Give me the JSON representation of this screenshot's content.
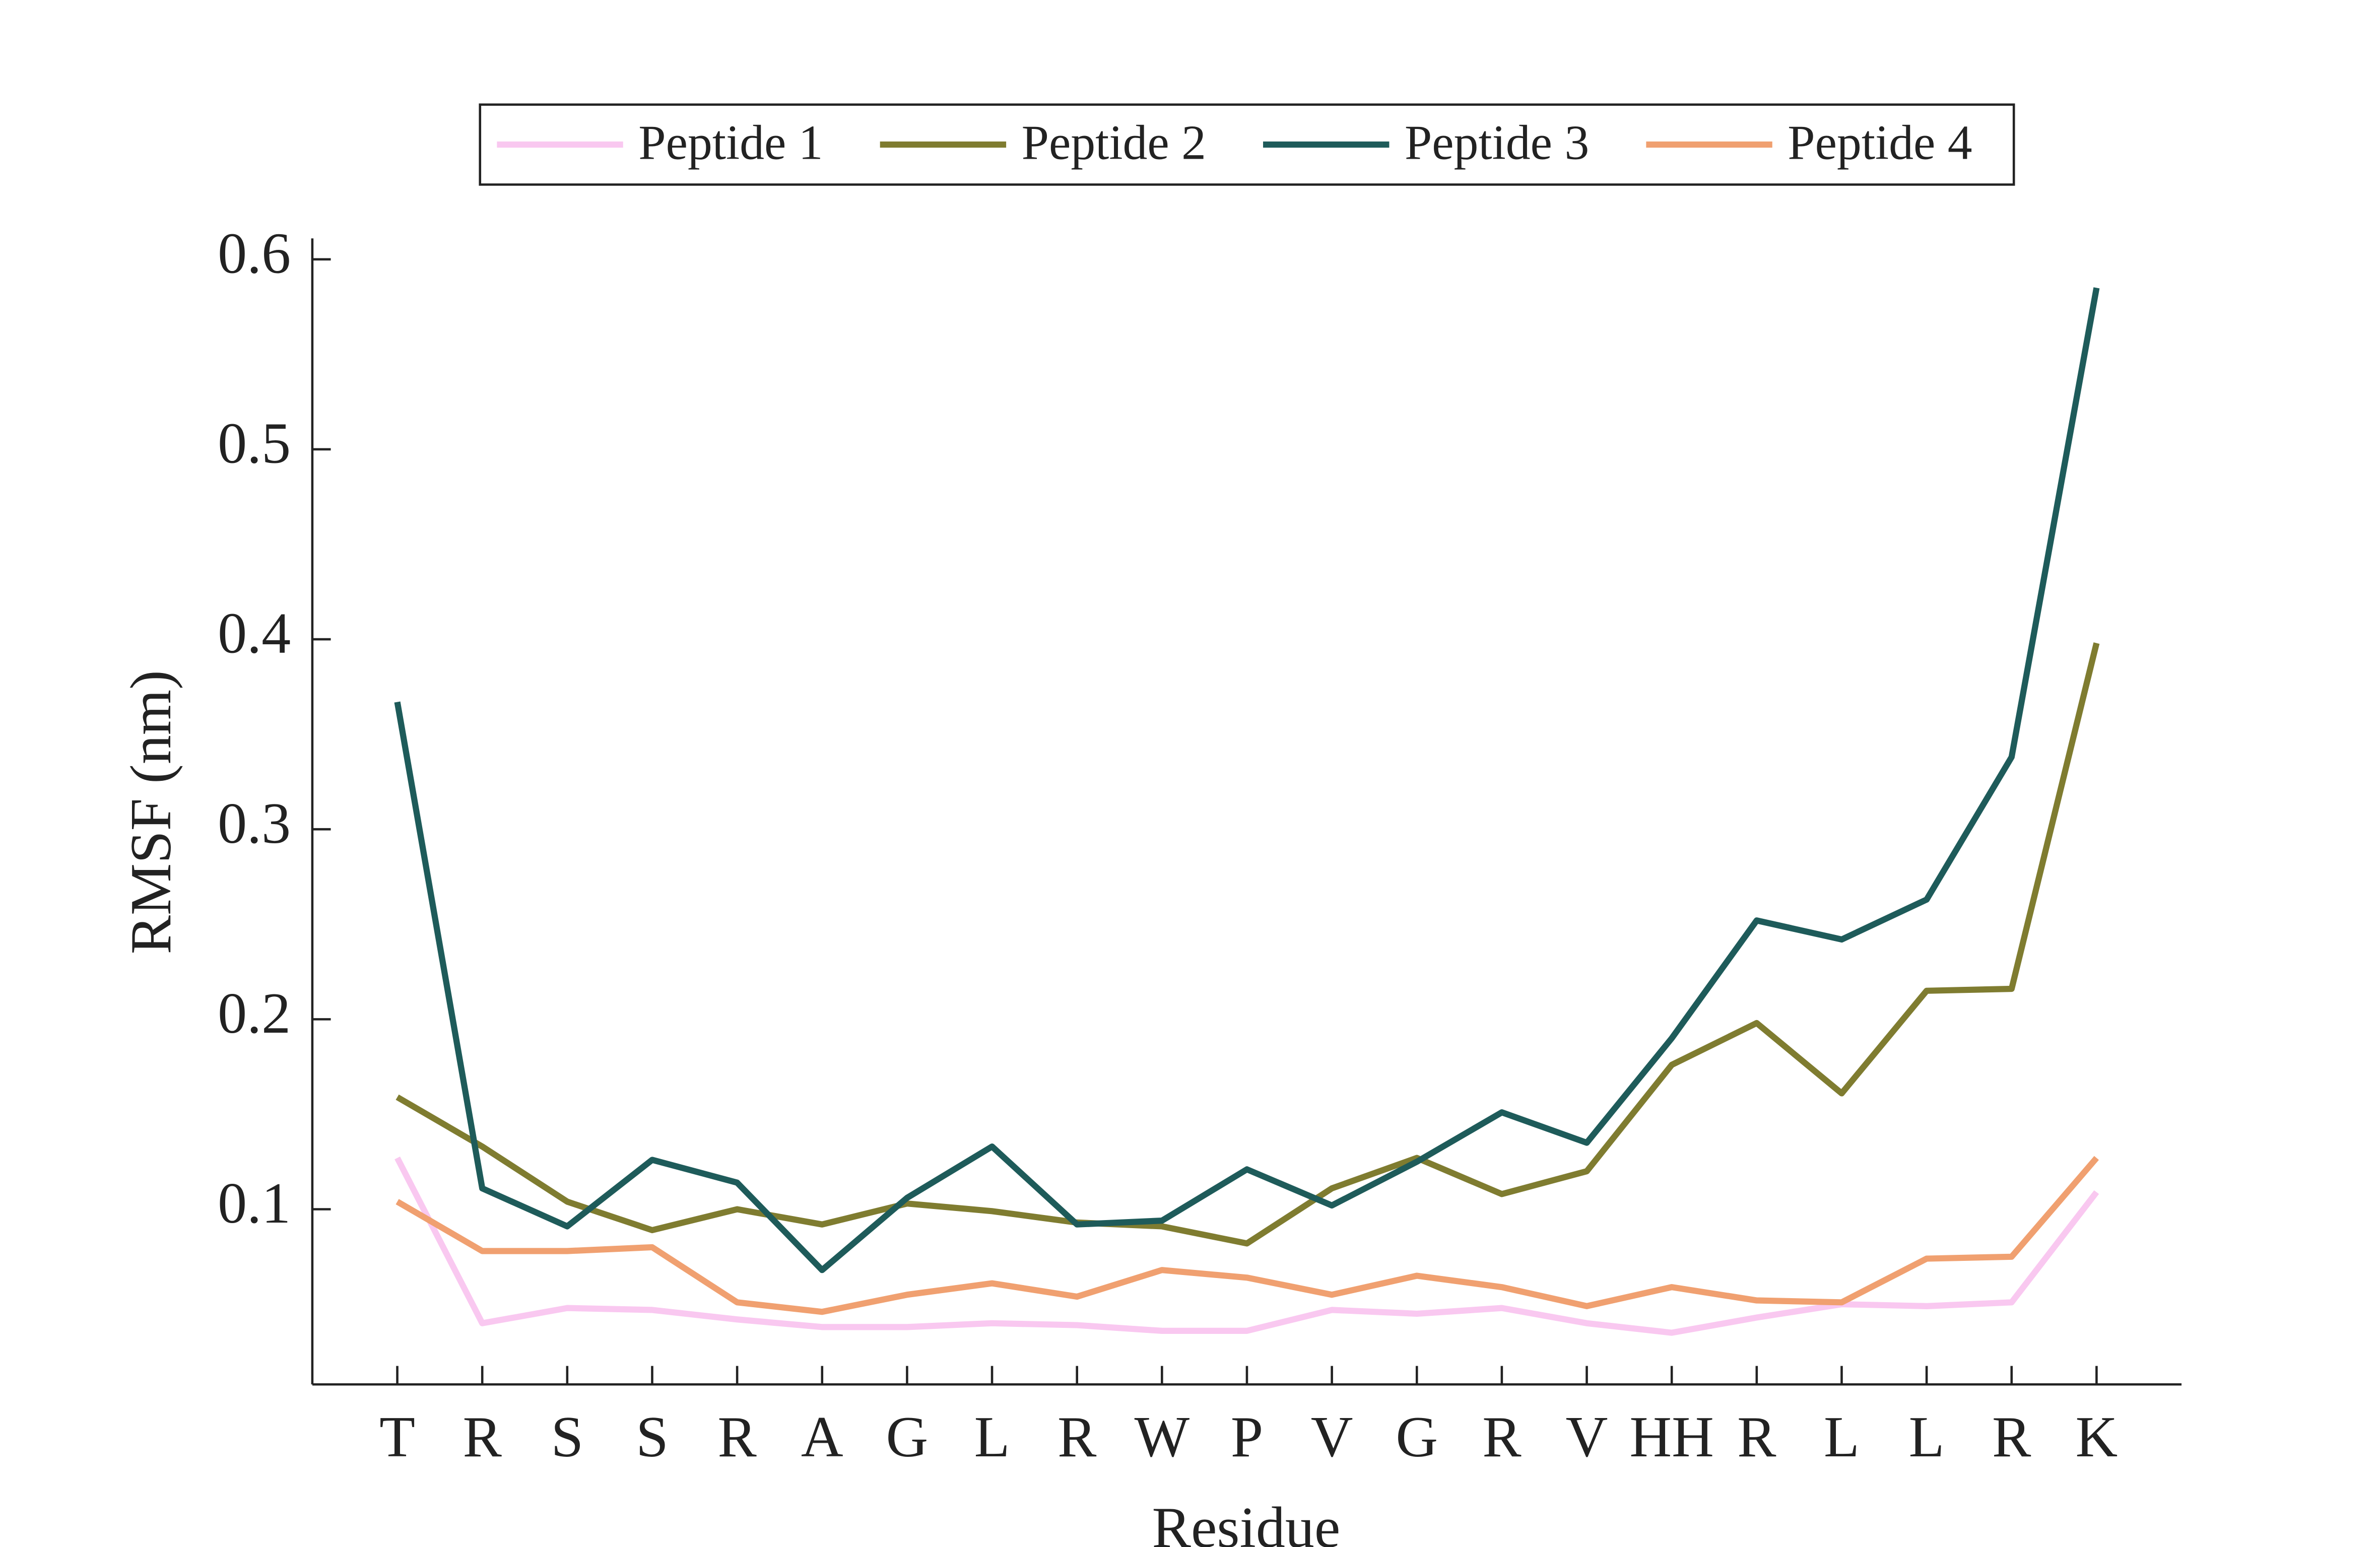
{
  "chart_data": {
    "type": "line",
    "xlabel": "Residue",
    "ylabel": "RMSF (nm)",
    "categories": [
      "T",
      "R",
      "S",
      "S",
      "R",
      "A",
      "G",
      "L",
      "R",
      "W",
      "P",
      "V",
      "G",
      "R",
      "V",
      "HH",
      "R",
      "L",
      "L",
      "R",
      "K"
    ],
    "ylim": [
      0.0078,
      0.611
    ],
    "yticks": [
      0.1,
      0.2,
      0.3,
      0.4,
      0.5,
      0.6
    ],
    "legend": "top",
    "series": [
      {
        "name": "Peptide 1",
        "color": "#f9c8f0",
        "values": [
          0.127,
          0.04,
          0.048,
          0.047,
          0.042,
          0.038,
          0.038,
          0.04,
          0.039,
          0.036,
          0.036,
          0.047,
          0.045,
          0.048,
          0.04,
          0.035,
          0.043,
          0.05,
          0.049,
          0.051,
          0.109
        ]
      },
      {
        "name": "Peptide 2",
        "color": "#7f7c30",
        "values": [
          0.159,
          0.133,
          0.104,
          0.089,
          0.1,
          0.092,
          0.103,
          0.099,
          0.093,
          0.091,
          0.082,
          0.111,
          0.127,
          0.108,
          0.12,
          0.176,
          0.198,
          0.161,
          0.215,
          0.216,
          0.398
        ]
      },
      {
        "name": "Peptide 3",
        "color": "#1e5b5a",
        "values": [
          0.367,
          0.111,
          0.091,
          0.126,
          0.114,
          0.068,
          0.106,
          0.133,
          0.092,
          0.094,
          0.121,
          0.102,
          0.125,
          0.151,
          0.135,
          0.19,
          0.252,
          0.242,
          0.263,
          0.338,
          0.585
        ]
      },
      {
        "name": "Peptide 4",
        "color": "#f0a070",
        "values": [
          0.104,
          0.078,
          0.078,
          0.08,
          0.051,
          0.046,
          0.055,
          0.061,
          0.054,
          0.068,
          0.064,
          0.055,
          0.065,
          0.059,
          0.049,
          0.059,
          0.052,
          0.051,
          0.074,
          0.075,
          0.127
        ]
      }
    ]
  }
}
